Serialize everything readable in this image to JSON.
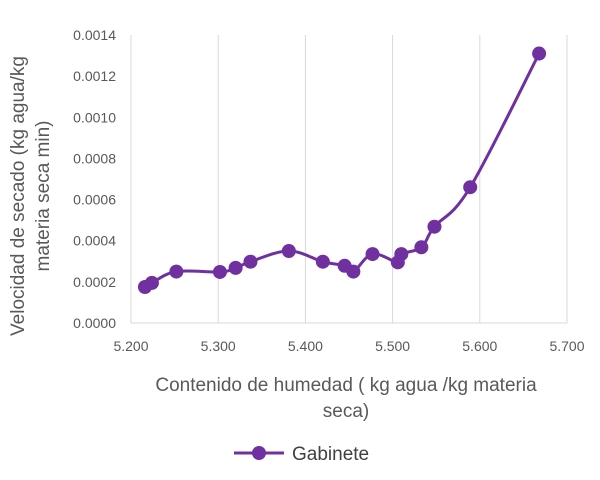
{
  "chart_data": {
    "type": "scatter",
    "xlabel": "Contenido de humedad ( kg agua /kg materia seca)",
    "xlabel_lines": [
      "Contenido de humedad ( kg agua /kg materia",
      "seca)"
    ],
    "ylabel": "Velocidad de secado (kg agua/kg materia seca min)",
    "ylabel_lines": [
      "Velocidad de secado (kg agua/kg",
      "materia seca min)"
    ],
    "xlim": [
      5.2,
      5.7
    ],
    "ylim": [
      0,
      0.0014
    ],
    "x_ticks": [
      "5.200",
      "5.300",
      "5.400",
      "5.500",
      "5.600",
      "5.700"
    ],
    "y_ticks": [
      "0.0000",
      "0.0002",
      "0.0004",
      "0.0006",
      "0.0008",
      "0.0010",
      "0.0012",
      "0.0014"
    ],
    "grid": "vertical",
    "legend_position": "bottom",
    "line_color": "#7030a0",
    "series": [
      {
        "name": "Gabinete",
        "x": [
          5.216,
          5.224,
          5.252,
          5.302,
          5.32,
          5.337,
          5.381,
          5.42,
          5.445,
          5.455,
          5.477,
          5.506,
          5.51,
          5.533,
          5.548,
          5.589,
          5.668
        ],
        "y": [
          0.000175,
          0.000195,
          0.00025,
          0.000248,
          0.000268,
          0.000298,
          0.00035,
          0.000298,
          0.000278,
          0.00025,
          0.000335,
          0.000295,
          0.000335,
          0.000368,
          0.000468,
          0.00066,
          0.00131
        ]
      }
    ]
  }
}
